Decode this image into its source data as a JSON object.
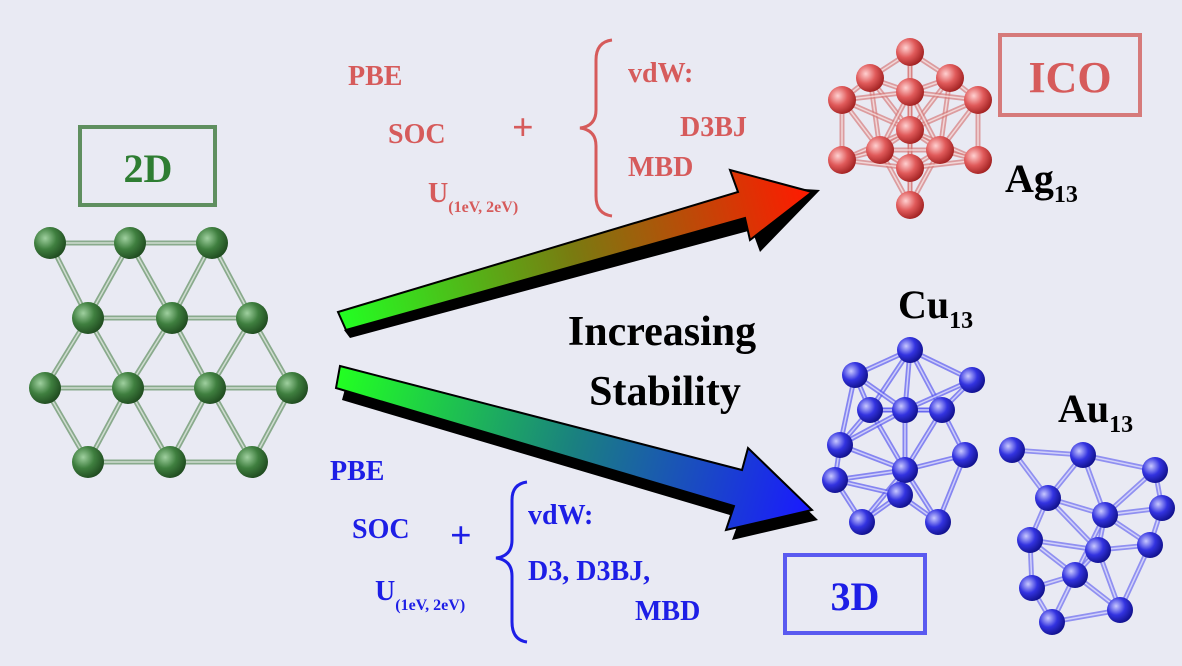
{
  "labels": {
    "left": "2D",
    "top_right": "ICO",
    "bottom_right": "3D"
  },
  "center": [
    "Increasing",
    "Stability"
  ],
  "top_methods": {
    "base": [
      "PBE",
      "SOC"
    ],
    "plus": "+",
    "u": "U",
    "u_sub": "(1eV, 2eV)",
    "vdw": [
      "vdW:",
      "D3BJ",
      "MBD"
    ]
  },
  "bottom_methods": {
    "base": [
      "PBE",
      "SOC"
    ],
    "plus": "+",
    "u": "U",
    "u_sub": "(1eV, 2eV)",
    "vdw": [
      "vdW:",
      "D3, D3BJ,",
      "MBD"
    ]
  },
  "clusters": [
    {
      "symbol": "Ag",
      "sub": "13"
    },
    {
      "symbol": "Cu",
      "sub": "13"
    },
    {
      "symbol": "Au",
      "sub": "13"
    }
  ]
}
